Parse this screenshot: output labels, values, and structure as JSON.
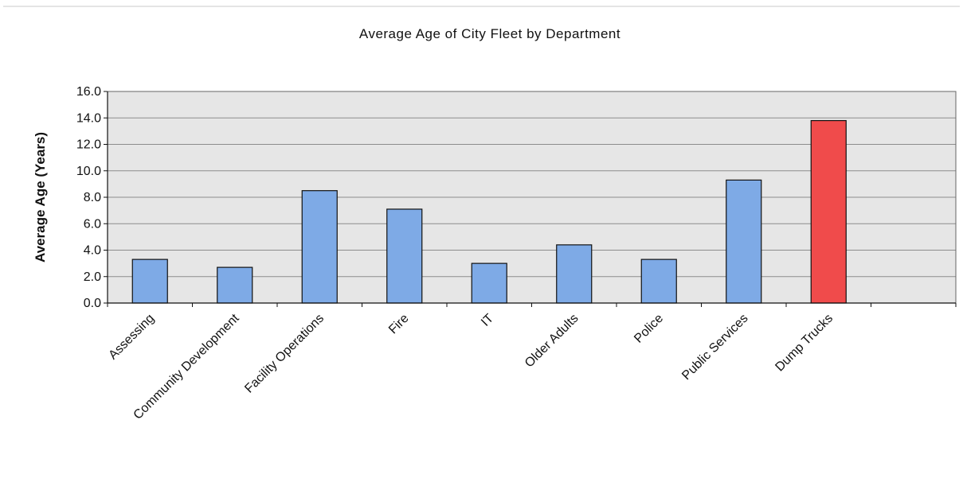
{
  "colors": {
    "plot_background": "#e6e6e6",
    "grid": "#8c8c8c",
    "bar_default": "#7eaae6",
    "bar_highlight": "#f04b4b",
    "bar_outline": "#111111",
    "axis": "#111111"
  },
  "chart_data": {
    "type": "bar",
    "title": "Average Age of City Fleet by Department",
    "xlabel": "",
    "ylabel": "Average Age (Years)",
    "ylim": [
      0,
      16
    ],
    "y_ticks": [
      "0.0",
      "2.0",
      "4.0",
      "6.0",
      "8.0",
      "10.0",
      "12.0",
      "14.0",
      "16.0"
    ],
    "grid": true,
    "legend": "none",
    "categories": [
      "Assessing",
      "Community Development",
      "Facility Operations",
      "Fire",
      "IT",
      "Older Adults",
      "Police",
      "Public Services",
      "Dump Trucks",
      ""
    ],
    "values": [
      3.3,
      2.7,
      8.5,
      7.1,
      3.0,
      4.4,
      3.3,
      9.3,
      13.8,
      null
    ],
    "highlighted_category": "Dump Trucks"
  }
}
